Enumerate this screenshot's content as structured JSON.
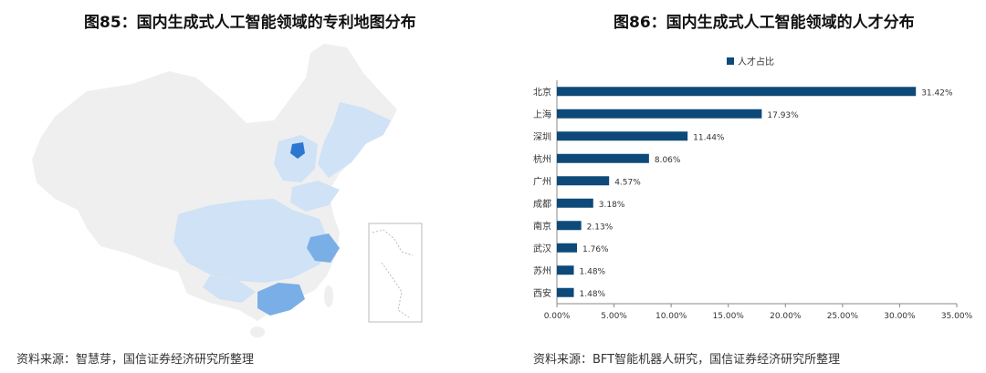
{
  "left_panel": {
    "title": "图85：国内生成式人工智能领域的专利地图分布",
    "source": "资料来源：智慧芽，国信证券经济研究所整理",
    "colors": {
      "base": "#efefef",
      "light": "#cfe2f6",
      "medium": "#7aaee6",
      "dark": "#2b77d1"
    }
  },
  "right_panel": {
    "title": "图86：国内生成式人工智能领域的人才分布",
    "source": "资料来源：BFT智能机器人研究，国信证券经济研究所整理"
  },
  "chart_data": {
    "type": "bar",
    "orientation": "horizontal",
    "categories": [
      "北京",
      "上海",
      "深圳",
      "杭州",
      "广州",
      "成都",
      "南京",
      "武汉",
      "苏州",
      "西安"
    ],
    "series": [
      {
        "name": "人才占比",
        "values": [
          31.42,
          17.93,
          11.44,
          8.06,
          4.57,
          3.18,
          2.13,
          1.76,
          1.48,
          1.48
        ]
      }
    ],
    "data_labels": [
      "31.42%",
      "17.93%",
      "11.44%",
      "8.06%",
      "4.57%",
      "3.18%",
      "2.13%",
      "1.76%",
      "1.48%",
      "1.48%"
    ],
    "xlim": [
      0,
      35
    ],
    "x_ticks": [
      0,
      5,
      10,
      15,
      20,
      25,
      30,
      35
    ],
    "x_tick_labels": [
      "0.00%",
      "5.00%",
      "10.00%",
      "15.00%",
      "20.00%",
      "25.00%",
      "30.00%",
      "35.00%"
    ],
    "legend_position": "top",
    "bar_color": "#0d4a7a",
    "grid": false
  }
}
